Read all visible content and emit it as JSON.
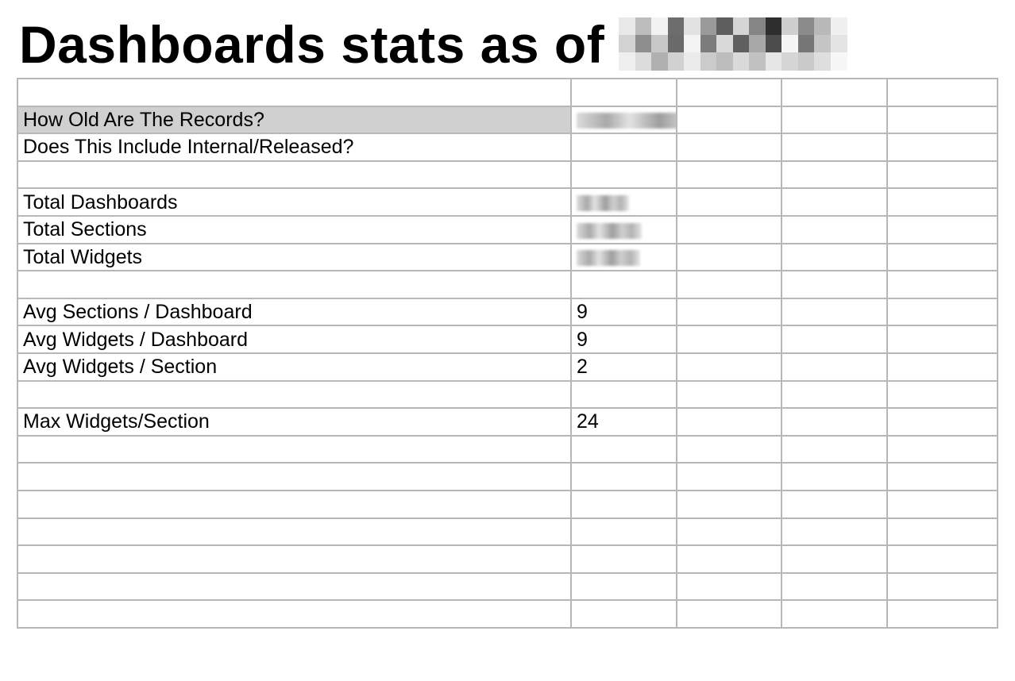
{
  "header": {
    "title": "Dashboards stats as of",
    "redacted_date_pixels": [
      "#e8e8e8",
      "#bdbdbd",
      "#f2f2f2",
      "#6d6d6d",
      "#e2e2e2",
      "#9a9a9a",
      "#5e5e5e",
      "#d5d5d5",
      "#858585",
      "#2e2e2e",
      "#cfcfcf",
      "#8b8b8b",
      "#b9b9b9",
      "#f0f0f0",
      "#d2d2d2",
      "#8e8e8e",
      "#c8c8c8",
      "#6a6a6a",
      "#f3f3f3",
      "#7c7c7c",
      "#d9d9d9",
      "#606060",
      "#a8a8a8",
      "#4c4c4c",
      "#f5f5f5",
      "#777777",
      "#c5c5c5",
      "#e4e4e4",
      "#efefef",
      "#dcdcdc",
      "#b0b0b0",
      "#d1d1d1",
      "#ebebeb",
      "#cbcbcb",
      "#bdbdbd",
      "#dadada",
      "#c1c1c1",
      "#e6e6e6",
      "#d6d6d6",
      "#cacaca",
      "#dedede",
      "#f7f7f7"
    ]
  },
  "sheet": {
    "rows": [
      [
        "",
        "",
        "",
        "",
        ""
      ],
      [
        "How Old Are The Records?",
        "",
        "",
        "",
        ""
      ],
      [
        "Does This Include Internal/Released?",
        "",
        "",
        "",
        ""
      ],
      [
        "",
        "",
        "",
        "",
        ""
      ],
      [
        "Total Dashboards",
        "",
        "",
        "",
        ""
      ],
      [
        "Total Sections",
        "",
        "",
        "",
        ""
      ],
      [
        "Total Widgets",
        "",
        "",
        "",
        ""
      ],
      [
        "",
        "",
        "",
        "",
        ""
      ],
      [
        "Avg Sections / Dashboard",
        "9",
        "",
        "",
        ""
      ],
      [
        "Avg Widgets / Dashboard",
        "9",
        "",
        "",
        ""
      ],
      [
        "Avg Widgets / Section",
        "2",
        "",
        "",
        ""
      ],
      [
        "",
        "",
        "",
        "",
        ""
      ],
      [
        "Max Widgets/Section",
        "24",
        "",
        "",
        ""
      ],
      [
        "",
        "",
        "",
        "",
        ""
      ],
      [
        "",
        "",
        "",
        "",
        ""
      ],
      [
        "",
        "",
        "",
        "",
        ""
      ],
      [
        "",
        "",
        "",
        "",
        ""
      ],
      [
        "",
        "",
        "",
        "",
        ""
      ],
      [
        "",
        "",
        "",
        "",
        ""
      ],
      [
        "",
        "",
        "",
        "",
        ""
      ]
    ],
    "highlighted_cell_color": "#d0d0d0",
    "gridline_color": "#b7b7b7"
  }
}
